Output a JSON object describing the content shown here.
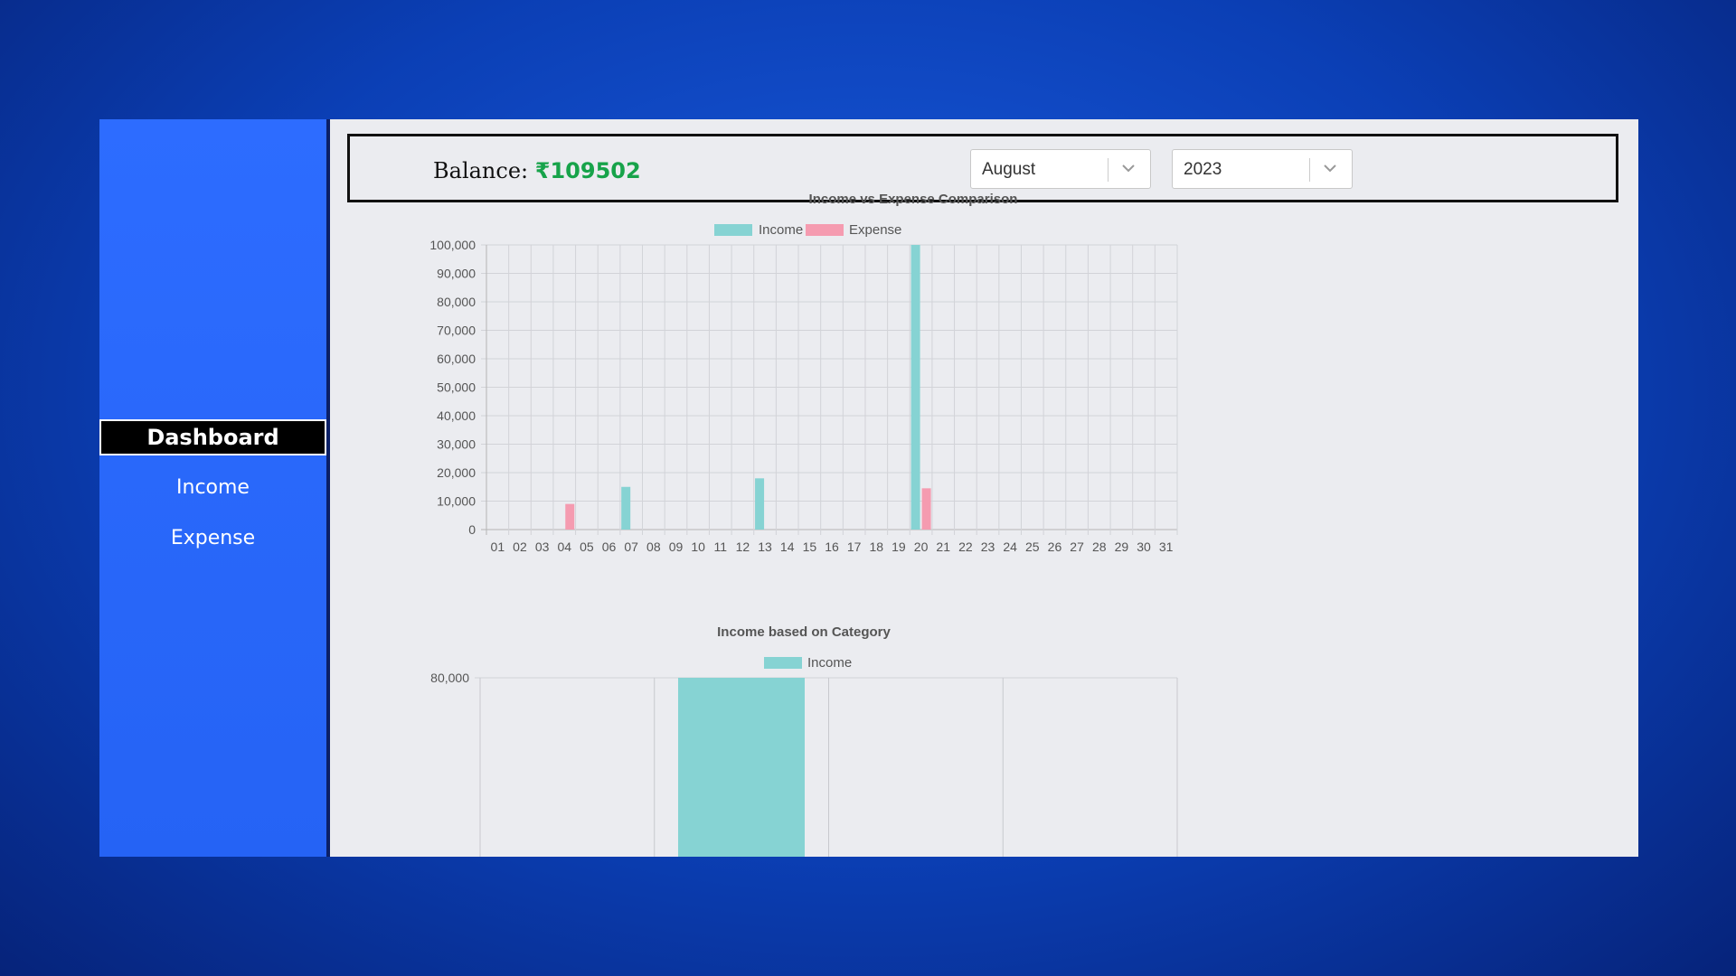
{
  "sidebar": {
    "items": [
      {
        "label": "Dashboard",
        "active": true
      },
      {
        "label": "Income"
      },
      {
        "label": "Expense"
      }
    ]
  },
  "header": {
    "balance_label": "Balance:",
    "balance_value": "₹109502",
    "month_select": {
      "value": "August"
    },
    "year_select": {
      "value": "2023"
    }
  },
  "colors": {
    "income": "#86d3d3",
    "expense": "#f59bb0",
    "accent": "#2d6cff",
    "positive": "#17a34a"
  },
  "chart_data": [
    {
      "type": "bar",
      "title": "Income vs Expense Comparison",
      "categories": [
        "01",
        "02",
        "03",
        "04",
        "05",
        "06",
        "07",
        "08",
        "09",
        "10",
        "11",
        "12",
        "13",
        "14",
        "15",
        "16",
        "17",
        "18",
        "19",
        "20",
        "21",
        "22",
        "23",
        "24",
        "25",
        "26",
        "27",
        "28",
        "29",
        "30",
        "31"
      ],
      "series": [
        {
          "name": "Income",
          "values": [
            0,
            0,
            0,
            0,
            0,
            0,
            15000,
            0,
            0,
            0,
            0,
            0,
            18000,
            0,
            0,
            0,
            0,
            0,
            0,
            100000,
            0,
            0,
            0,
            0,
            0,
            0,
            0,
            0,
            0,
            0,
            0
          ]
        },
        {
          "name": "Expense",
          "values": [
            0,
            0,
            0,
            9000,
            0,
            0,
            0,
            0,
            0,
            0,
            0,
            0,
            0,
            0,
            0,
            0,
            0,
            0,
            0,
            14500,
            0,
            0,
            0,
            0,
            0,
            0,
            0,
            0,
            0,
            0,
            0
          ]
        }
      ],
      "ylim": [
        0,
        100000
      ],
      "yticks": [
        "0",
        "10,000",
        "20,000",
        "30,000",
        "40,000",
        "50,000",
        "60,000",
        "70,000",
        "80,000",
        "90,000",
        "100,000"
      ],
      "grid": true,
      "legend": "top"
    },
    {
      "type": "bar",
      "title": "Income based on Category",
      "series": [
        {
          "name": "Income"
        }
      ],
      "yticks_visible": [
        "80,000"
      ],
      "legend": "top"
    }
  ]
}
